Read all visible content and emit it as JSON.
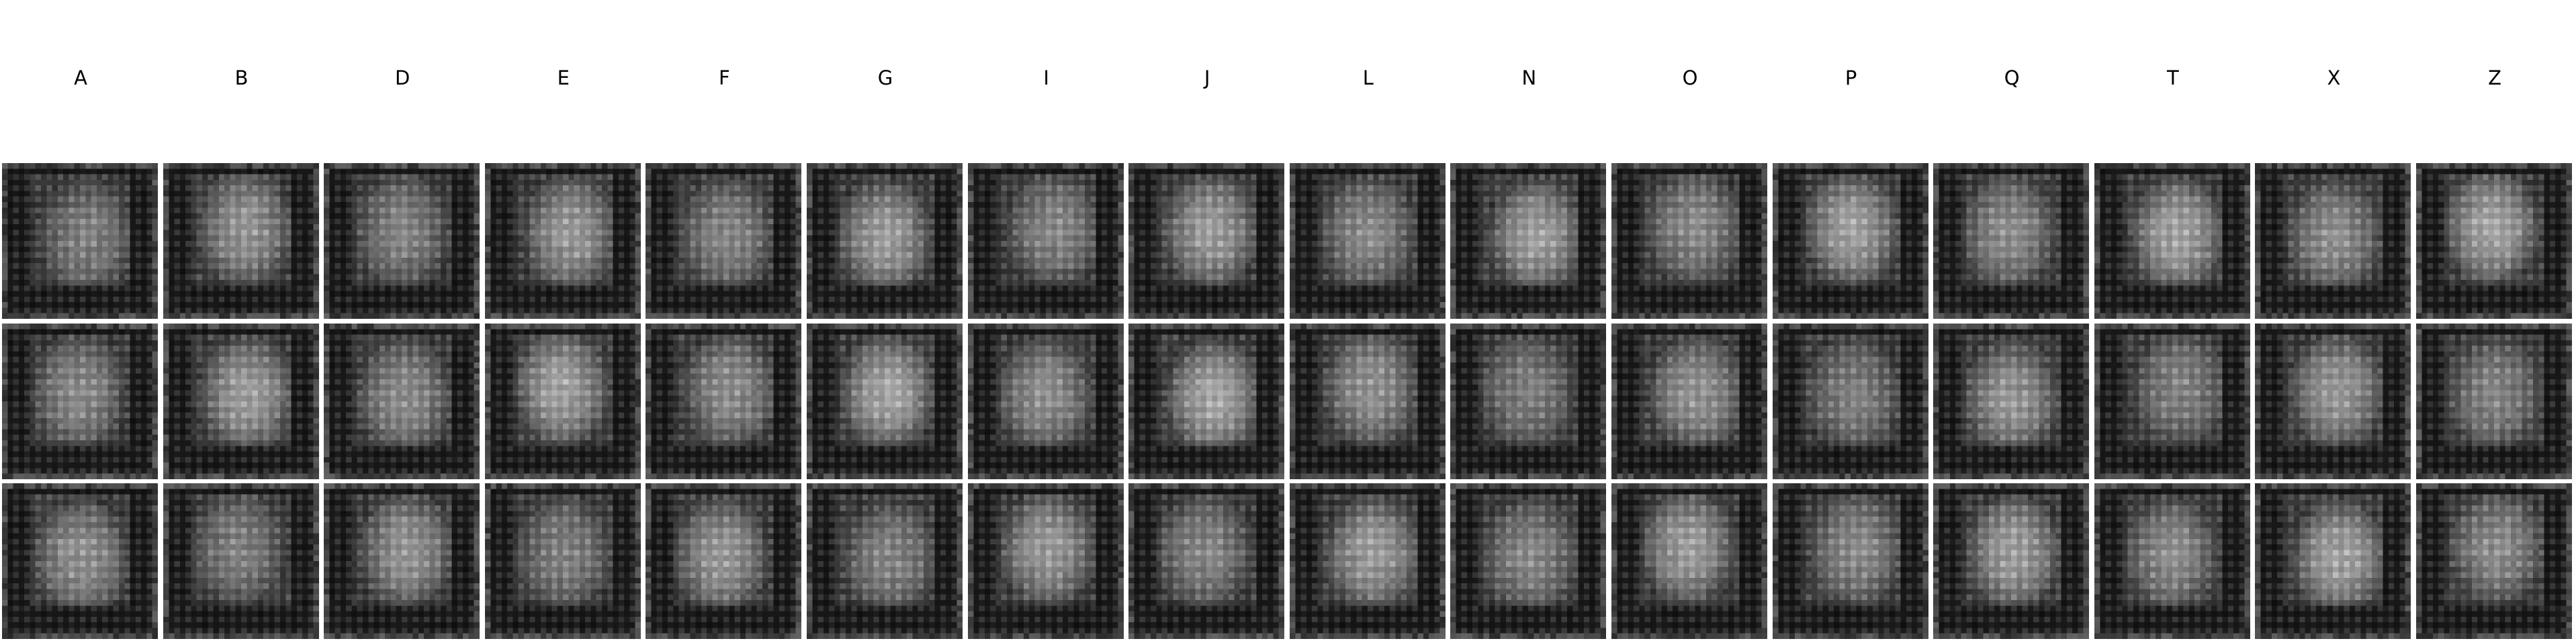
{
  "figure": {
    "column_labels": [
      "A",
      "B",
      "D",
      "E",
      "F",
      "G",
      "I",
      "J",
      "L",
      "N",
      "O",
      "P",
      "Q",
      "T",
      "X",
      "Z"
    ],
    "row_count": 3,
    "cell_style": "grayscale generated glyph samples with checkerboard artifacts",
    "colors": {
      "background": "#ffffff",
      "label": "#000000",
      "tile_dark": "#1a1a1a",
      "tile_light": "#cfcfcf"
    }
  }
}
